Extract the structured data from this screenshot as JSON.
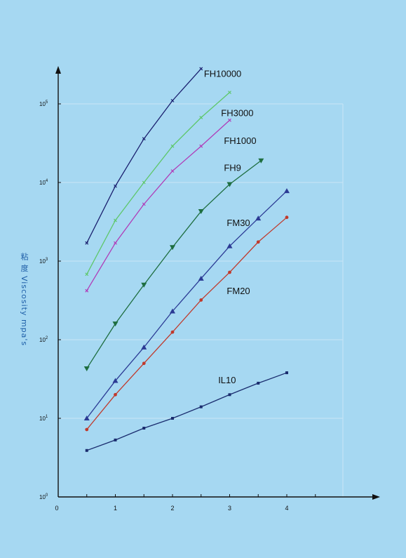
{
  "chart_data": {
    "type": "line",
    "title": "",
    "xlabel": "",
    "ylabel": "粘 度 Viscosity mpa's",
    "y_scale": "log",
    "xlim": [
      0,
      5
    ],
    "ylim": [
      1,
      100000
    ],
    "x_ticks": [
      "0",
      "1",
      "2",
      "3",
      "4"
    ],
    "x_tick_values": [
      0,
      1,
      2,
      3,
      4
    ],
    "y_ticks": [
      {
        "value": 1,
        "base": "10",
        "exp": "0"
      },
      {
        "value": 10,
        "base": "10",
        "exp": "1"
      },
      {
        "value": 100,
        "base": "10",
        "exp": "2"
      },
      {
        "value": 1000,
        "base": "10",
        "exp": "3"
      },
      {
        "value": 10000,
        "base": "10",
        "exp": "4"
      },
      {
        "value": 100000,
        "base": "10",
        "exp": "5"
      }
    ],
    "grid": true,
    "colors": {
      "axis": "#111111",
      "grid": "#c9e6f6"
    },
    "series": [
      {
        "name": "FH10000",
        "color": "#1a1f6e",
        "marker": "x",
        "x": [
          0.5,
          1.0,
          1.5,
          2.0,
          2.5
        ],
        "y": [
          1700,
          9000,
          36000,
          110000,
          280000
        ],
        "label_at": [
          2.55,
          220000
        ]
      },
      {
        "name": "FH3000",
        "color": "#5ec76a",
        "marker": "x",
        "x": [
          0.5,
          1.0,
          1.5,
          2.0,
          2.5,
          3.0
        ],
        "y": [
          680,
          3300,
          10000,
          29000,
          67000,
          140000
        ],
        "label_at": [
          2.85,
          70000
        ]
      },
      {
        "name": "FH1000",
        "color": "#b03cb8",
        "marker": "x",
        "x": [
          0.5,
          1.0,
          1.5,
          2.0,
          2.5,
          3.0
        ],
        "y": [
          420,
          1700,
          5300,
          14000,
          29000,
          62000
        ],
        "label_at": [
          2.9,
          31000
        ]
      },
      {
        "name": "FH9",
        "color": "#1e6e40",
        "marker": "triangle-down",
        "x": [
          0.5,
          1.0,
          1.5,
          2.0,
          2.5,
          3.0,
          3.55
        ],
        "y": [
          43,
          160,
          500,
          1500,
          4300,
          9500,
          19000
        ],
        "label_at": [
          2.9,
          14000
        ]
      },
      {
        "name": "FM30",
        "color": "#2b3a94",
        "marker": "triangle-up",
        "x": [
          0.5,
          1.0,
          1.5,
          2.0,
          2.5,
          3.0,
          3.5,
          4.0
        ],
        "y": [
          10,
          30,
          80,
          230,
          600,
          1550,
          3500,
          7800
        ],
        "label_at": [
          2.95,
          2800
        ]
      },
      {
        "name": "FM20",
        "color": "#c0392b",
        "marker": "circle",
        "x": [
          0.5,
          1.0,
          1.5,
          2.0,
          2.5,
          3.0,
          3.5,
          4.0
        ],
        "y": [
          7.2,
          20,
          50,
          125,
          320,
          720,
          1750,
          3600
        ],
        "label_at": [
          2.95,
          380
        ]
      },
      {
        "name": "IL10",
        "color": "#1a2c6e",
        "marker": "square",
        "x": [
          0.5,
          1.0,
          1.5,
          2.0,
          2.5,
          3.0,
          3.5,
          4.0
        ],
        "y": [
          3.9,
          5.3,
          7.5,
          10,
          14,
          20,
          28,
          38
        ],
        "label_at": [
          2.8,
          28
        ]
      }
    ]
  }
}
